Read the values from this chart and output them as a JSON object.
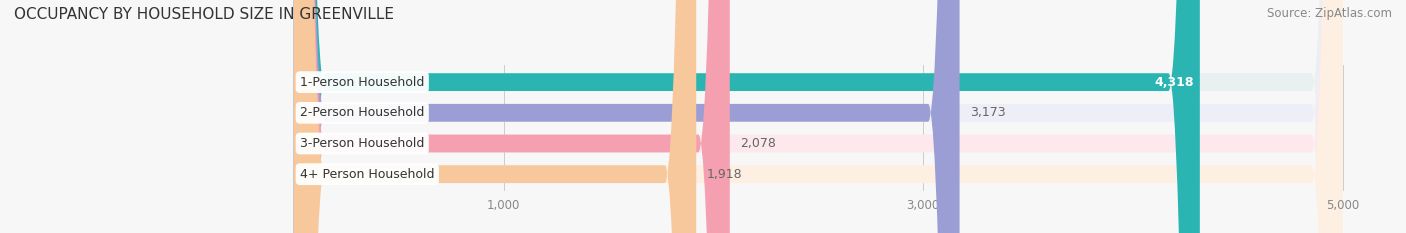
{
  "title": "OCCUPANCY BY HOUSEHOLD SIZE IN GREENVILLE",
  "source": "Source: ZipAtlas.com",
  "categories": [
    "1-Person Household",
    "2-Person Household",
    "3-Person Household",
    "4+ Person Household"
  ],
  "values": [
    4318,
    3173,
    2078,
    1918
  ],
  "bar_colors": [
    "#2ab5b2",
    "#9b9ed4",
    "#f4a0b0",
    "#f7c89b"
  ],
  "bar_bg_colors": [
    "#e8f0f0",
    "#eeeef8",
    "#fce8ed",
    "#fdf0e3"
  ],
  "value_labels": [
    "4,318",
    "3,173",
    "2,078",
    "1,918"
  ],
  "value_color_inside": "#ffffff",
  "value_color_outside": "#666666",
  "xlim_min": -1400,
  "xlim_max": 5200,
  "xdata_min": 0,
  "xdata_max": 5000,
  "xticks": [
    1000,
    3000,
    5000
  ],
  "xtick_labels": [
    "1,000",
    "3,000",
    "5,000"
  ],
  "title_fontsize": 11,
  "label_fontsize": 9,
  "value_fontsize": 9,
  "source_fontsize": 8.5,
  "bg_color": "#f7f7f7",
  "bar_height": 0.58,
  "bar_gap": 0.15,
  "n_bars": 4
}
